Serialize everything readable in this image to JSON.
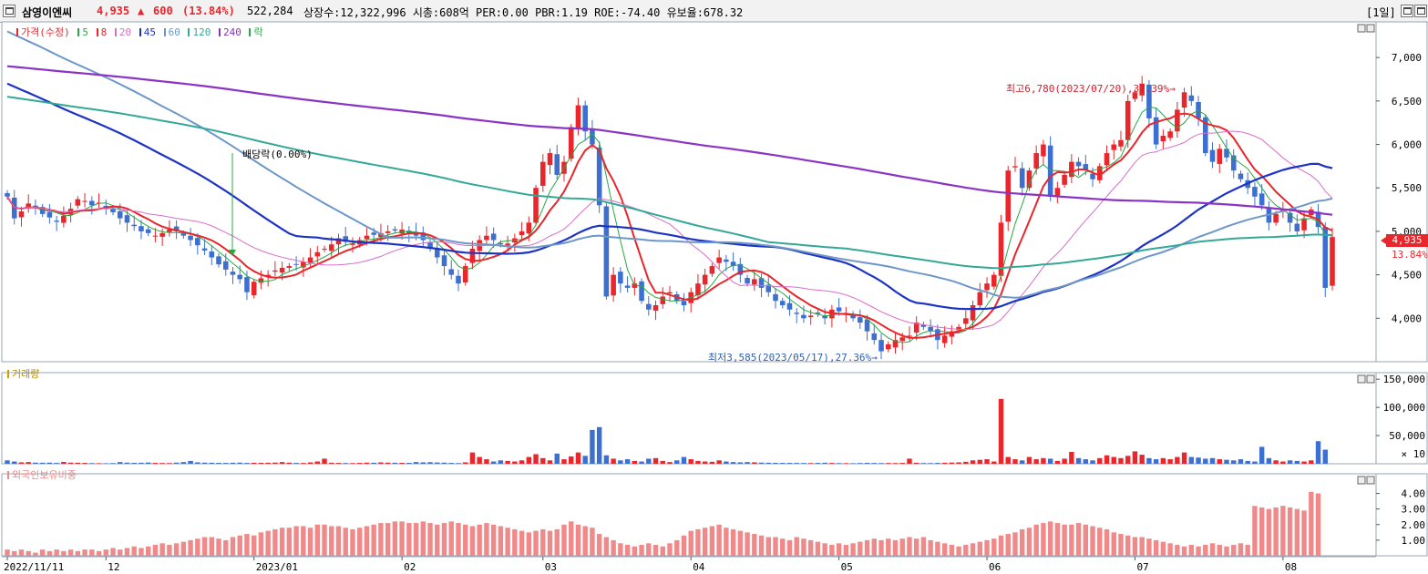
{
  "header": {
    "stock_name": "삼영이엔씨",
    "price": "4,935",
    "arrow": "▲",
    "change": "600",
    "change_pct": "(13.84%)",
    "volume": "522,284",
    "info": "상장수:12,322,996 시총:608억 PER:0.00 PBR:1.19 ROE:-74.40 유보율:678.32",
    "period": "[1일]"
  },
  "colors": {
    "up": "#e8262c",
    "down": "#3c6fcf",
    "ma5": "#27a844",
    "ma8": "#e8262c",
    "ma20": "#d86fc8",
    "ma45": "#1d33c4",
    "ma60": "#6d97c9",
    "ma120": "#34a897",
    "ma240": "#8a33c4"
  },
  "legend": {
    "price": [
      "가격(수정)",
      "5",
      "8",
      "20",
      "45",
      "60",
      "120",
      "240",
      "락"
    ],
    "volume": "거래량",
    "foreign": "외국인보유비중"
  },
  "price_badge": {
    "value": "4,935",
    "pct": "13.84%"
  },
  "annotations": {
    "high": "최고6,780(2023/07/20),37.39%→",
    "low": "최저3,585(2023/05/17),27.36%→",
    "dividend": "배당락(0.00%)"
  },
  "chart_data": [
    {
      "type": "candlestick",
      "title": "가격(수정)",
      "ylim": [
        3500,
        7400
      ],
      "yticks": [
        "7,000",
        "6,500",
        "6,000",
        "5,500",
        "5,000",
        "4,500",
        "4,000"
      ],
      "last_close": 4935,
      "high": 6780,
      "low": 3585,
      "closes": [
        5400,
        5150,
        5230,
        5320,
        5280,
        5200,
        5160,
        5110,
        5180,
        5260,
        5370,
        5350,
        5300,
        5330,
        5280,
        5220,
        5150,
        5100,
        5060,
        5000,
        4980,
        4950,
        4980,
        5020,
        5000,
        4950,
        4900,
        4840,
        4780,
        4700,
        4620,
        4560,
        4500,
        4450,
        4300,
        4420,
        4460,
        4500,
        4550,
        4580,
        4600,
        4620,
        4650,
        4700,
        4760,
        4800,
        4850,
        4920,
        4880,
        4860,
        4900,
        4950,
        4960,
        4980,
        5000,
        5010,
        5020,
        4980,
        4950,
        4900,
        4800,
        4700,
        4600,
        4500,
        4400,
        4600,
        4800,
        4900,
        4950,
        4900,
        4850,
        4860,
        4920,
        5000,
        5100,
        5500,
        5800,
        5900,
        5650,
        5800,
        6200,
        6450,
        6150,
        6000,
        5300,
        4250,
        4500,
        4400,
        4350,
        4400,
        4200,
        4100,
        4150,
        4250,
        4300,
        4200,
        4150,
        4300,
        4400,
        4500,
        4600,
        4700,
        4650,
        4600,
        4500,
        4400,
        4450,
        4350,
        4300,
        4200,
        4150,
        4100,
        4050,
        4000,
        4030,
        4050,
        4000,
        4100,
        4080,
        4060,
        4000,
        3950,
        3850,
        3750,
        3620,
        3700,
        3750,
        3780,
        3800,
        3950,
        3900,
        3850,
        3750,
        3800,
        3850,
        3900,
        4000,
        4150,
        4300,
        4400,
        4500,
        5100,
        5700,
        5750,
        5500,
        5700,
        5900,
        6000,
        5400,
        5500,
        5650,
        5800,
        5750,
        5700,
        5600,
        5750,
        5900,
        6000,
        6050,
        6500,
        6600,
        6700,
        6300,
        6000,
        6100,
        6150,
        6400,
        6600,
        6500,
        6300,
        5900,
        5800,
        5950,
        5850,
        5700,
        5600,
        5500,
        5400,
        5300,
        5100,
        5200,
        5250,
        5100,
        5000,
        5150,
        5250,
        5050,
        4350,
        4935
      ]
    },
    {
      "type": "bar",
      "title": "거래량",
      "ylim": [
        0,
        160000
      ],
      "yticks": [
        "150,000",
        "100,000",
        "50,000"
      ],
      "multiplier": "× 10",
      "values": [
        6000,
        4000,
        2500,
        3000,
        2000,
        1800,
        2000,
        1500,
        3200,
        2000,
        1800,
        1500,
        1200,
        1000,
        900,
        1200,
        3000,
        2000,
        1600,
        1800,
        2200,
        1500,
        1300,
        1200,
        2000,
        3000,
        5000,
        2500,
        2000,
        1800,
        1600,
        1500,
        1800,
        2000,
        1500,
        1700,
        1600,
        1800,
        2100,
        3000,
        2000,
        1500,
        1400,
        2400,
        4000,
        9000,
        1800,
        1500,
        1300,
        1200,
        1500,
        2000,
        1800,
        2400,
        2000,
        1800,
        1600,
        1600,
        3000,
        2500,
        2800,
        2200,
        2000,
        1500,
        1200,
        2500,
        20000,
        12000,
        8000,
        4000,
        6000,
        5000,
        4000,
        6000,
        12000,
        17000,
        10000,
        6000,
        18000,
        8000,
        13000,
        20000,
        14000,
        60000,
        65000,
        15000,
        9000,
        6000,
        8000,
        5000,
        4000,
        9000,
        10000,
        5000,
        3000,
        6000,
        12000,
        8000,
        5000,
        4000,
        3500,
        6000,
        4000,
        3000,
        2500,
        3000,
        2500,
        2000,
        1800,
        1600,
        1500,
        1500,
        1400,
        1300,
        1200,
        1500,
        1800,
        1400,
        1200,
        1100,
        1000,
        1300,
        1600,
        1400,
        1200,
        1300,
        1200,
        1500,
        9000,
        1800,
        1300,
        1200,
        1500,
        1800,
        2200,
        2500,
        3500,
        6000,
        7000,
        8000,
        4000,
        115000,
        12000,
        8000,
        6000,
        12000,
        8000,
        10000,
        9000,
        5000,
        9000,
        21000,
        10000,
        8000,
        6000,
        10000,
        15000,
        12000,
        10000,
        14000,
        22000,
        16000,
        10000,
        8000,
        10000,
        8000,
        12000,
        20000,
        12000,
        11000,
        9000,
        10000,
        8000,
        7000,
        6000,
        8000,
        5000,
        4000,
        30000,
        10000,
        6000,
        4000,
        6000,
        5000,
        4000,
        6000,
        40000,
        25000
      ]
    },
    {
      "type": "bar",
      "title": "외국인보유비중",
      "ylim": [
        0,
        5.2
      ],
      "yticks": [
        "4.00",
        "3.00",
        "2.00",
        "1.00"
      ],
      "values": [
        0.4,
        0.3,
        0.4,
        0.3,
        0.2,
        0.4,
        0.3,
        0.4,
        0.3,
        0.4,
        0.3,
        0.4,
        0.4,
        0.3,
        0.4,
        0.5,
        0.4,
        0.5,
        0.6,
        0.5,
        0.6,
        0.7,
        0.8,
        0.7,
        0.8,
        0.9,
        1.0,
        1.1,
        1.2,
        1.2,
        1.1,
        1.0,
        1.2,
        1.3,
        1.4,
        1.3,
        1.5,
        1.6,
        1.7,
        1.8,
        1.8,
        1.9,
        1.9,
        1.8,
        2.0,
        2.0,
        1.9,
        1.9,
        1.8,
        1.7,
        1.8,
        1.9,
        2.0,
        2.1,
        2.1,
        2.2,
        2.2,
        2.1,
        2.1,
        2.2,
        2.1,
        2.0,
        2.1,
        2.2,
        2.1,
        2.0,
        1.9,
        2.0,
        2.1,
        2.0,
        1.9,
        1.8,
        1.7,
        1.6,
        1.5,
        1.6,
        1.7,
        1.6,
        1.7,
        2.0,
        2.2,
        2.0,
        1.9,
        1.8,
        1.4,
        1.2,
        1.0,
        0.8,
        0.7,
        0.6,
        0.7,
        0.8,
        0.7,
        0.6,
        0.8,
        1.0,
        1.3,
        1.6,
        1.7,
        1.8,
        1.9,
        2.0,
        1.8,
        1.7,
        1.6,
        1.5,
        1.4,
        1.3,
        1.2,
        1.2,
        1.1,
        1.0,
        1.2,
        1.1,
        1.0,
        0.9,
        0.8,
        0.7,
        0.8,
        0.7,
        0.8,
        0.9,
        1.0,
        1.1,
        1.0,
        1.1,
        1.0,
        1.1,
        1.2,
        1.1,
        1.2,
        1.0,
        0.9,
        0.8,
        0.7,
        0.6,
        0.7,
        0.8,
        0.9,
        1.0,
        1.1,
        1.3,
        1.4,
        1.5,
        1.7,
        1.8,
        2.0,
        2.1,
        2.2,
        2.1,
        2.0,
        2.0,
        2.1,
        2.0,
        1.9,
        1.8,
        1.7,
        1.5,
        1.4,
        1.3,
        1.2,
        1.2,
        1.1,
        1.0,
        0.9,
        0.8,
        0.7,
        0.6,
        0.7,
        0.6,
        0.7,
        0.8,
        0.7,
        0.6,
        0.7,
        0.8,
        0.7,
        3.2,
        3.1,
        3.0,
        3.1,
        3.2,
        3.1,
        3.0,
        2.9,
        4.1,
        4.0
      ]
    }
  ],
  "x_axis": {
    "labels": [
      "2022/11/11",
      "12",
      "2023/01",
      "02",
      "03",
      "04",
      "05",
      "06",
      "07",
      "08"
    ],
    "label_index": [
      0,
      14,
      35,
      56,
      76,
      97,
      118,
      139,
      160,
      181
    ]
  }
}
